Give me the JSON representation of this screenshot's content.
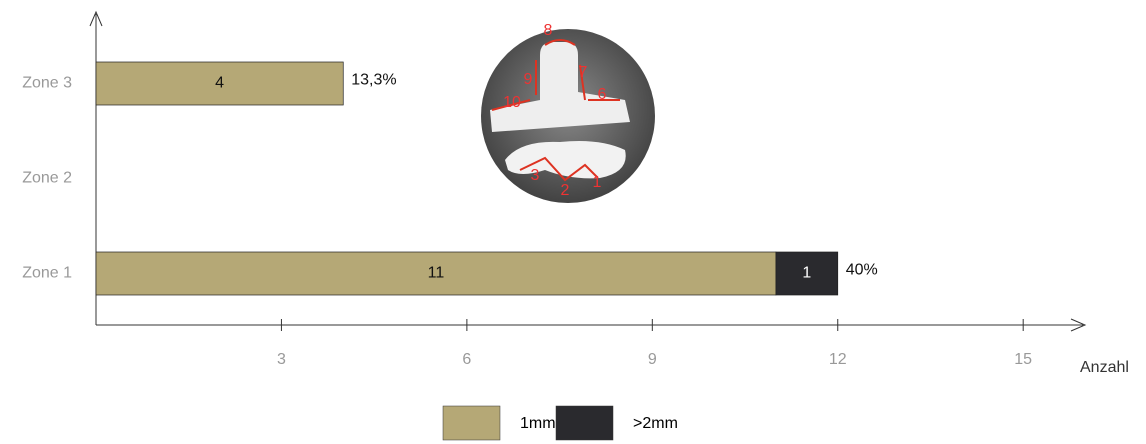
{
  "chart_data": {
    "type": "stacked-bar-horizontal",
    "categories": [
      "Zone 3",
      "Zone 2",
      "Zone 1"
    ],
    "series": [
      {
        "name": "1mm",
        "color": "#b5a876",
        "values": [
          4,
          null,
          11
        ]
      },
      {
        "name": ">2mm",
        "color": "#2a2a2e",
        "values": [
          null,
          null,
          1
        ]
      }
    ],
    "annotations": [
      "13,3%",
      null,
      "40%"
    ],
    "xlabel": "Anzahl",
    "xlim": [
      0,
      16
    ],
    "xticks": [
      3,
      6,
      9,
      12,
      15
    ],
    "inset_labels": [
      "1",
      "2",
      "3",
      "6",
      "7",
      "8",
      "9",
      "10"
    ]
  }
}
